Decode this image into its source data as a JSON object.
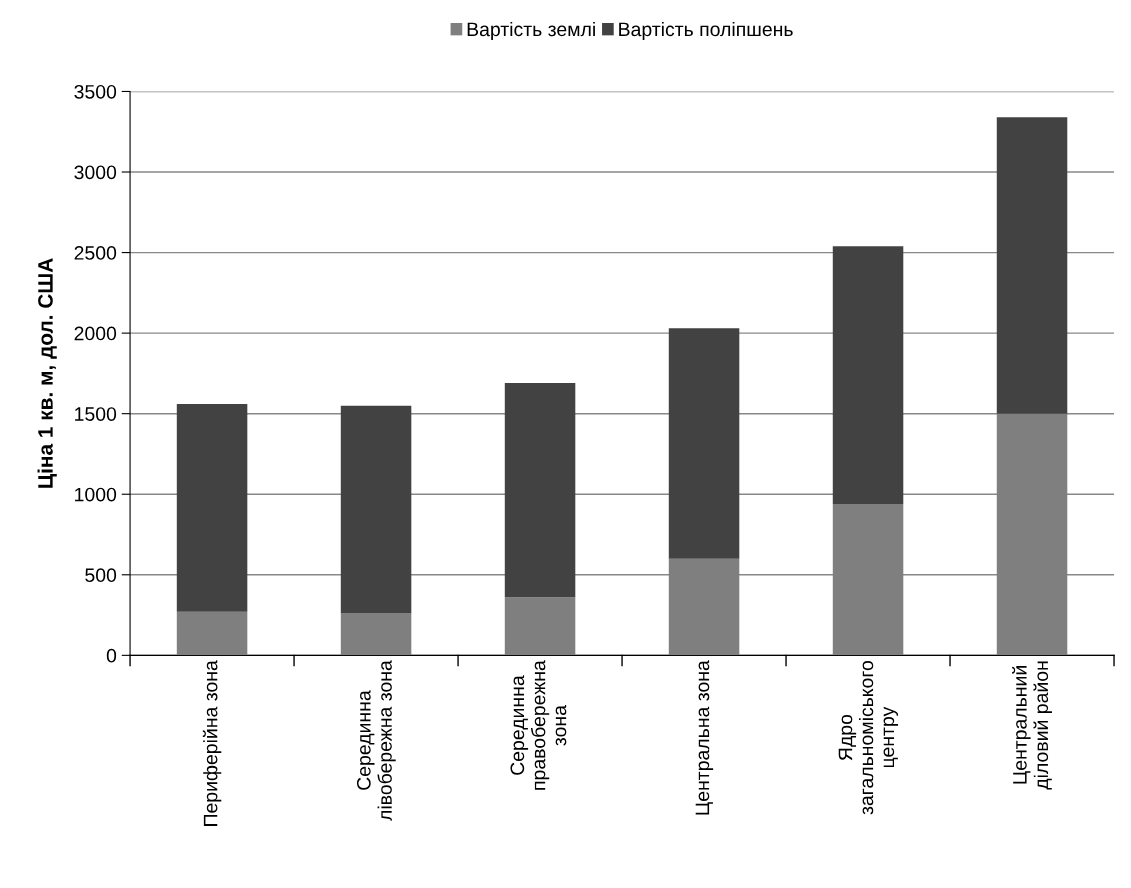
{
  "chart_data": {
    "type": "bar",
    "stacked": true,
    "ylabel": "Ціна 1 кв. м, дол. США",
    "categories": [
      "Периферійна зона",
      "Серединна\nлівобережна зона",
      "Серединна\nправобережна\nзона",
      "Центральна зона",
      "Ядро\nзагальноміського\nцентру",
      "Центральний\nділовий район"
    ],
    "series": [
      {
        "name": "Вартість землі",
        "color": "#7f7f7f",
        "values": [
          270,
          260,
          360,
          600,
          940,
          1500
        ]
      },
      {
        "name": "Вартість поліпшень",
        "color": "#424242",
        "values": [
          1290,
          1290,
          1330,
          1430,
          1600,
          1840
        ]
      }
    ],
    "ylim": [
      0,
      3500
    ],
    "yticks": [
      0,
      500,
      1000,
      1500,
      2000,
      2500,
      3000,
      3500
    ],
    "grid": "y",
    "legend": "top"
  }
}
